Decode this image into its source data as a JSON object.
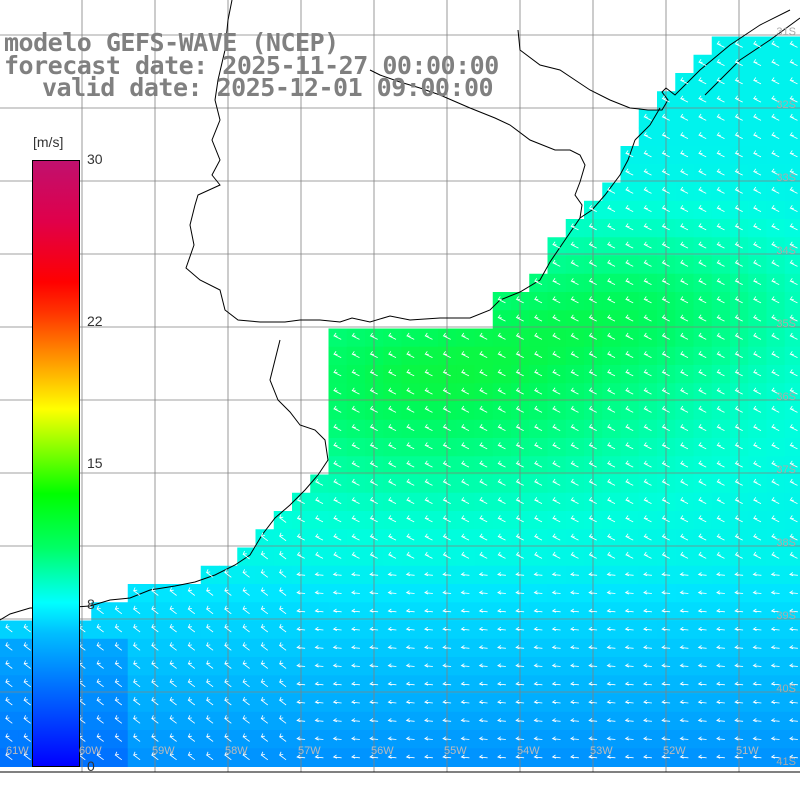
{
  "title": {
    "line1": "modelo GEFS-WAVE (NCEP)",
    "line2": "forecast date: 2025-11-27 00:00:00",
    "line3": "valid date: 2025-12-01 09:00:00"
  },
  "colorbar": {
    "units": "[m/s]",
    "min": 0,
    "max": 30,
    "ticks": [
      "30",
      "22",
      "15",
      "8",
      "0"
    ],
    "tick_values": [
      30,
      22,
      15,
      8,
      0
    ]
  },
  "lat_labels": [
    "31S",
    "32S",
    "33S",
    "34S",
    "35S",
    "36S",
    "37S",
    "38S",
    "39S",
    "40S",
    "41S"
  ],
  "lon_labels": [
    "61W",
    "60W",
    "59W",
    "58W",
    "57W",
    "56W",
    "55W",
    "54W",
    "53W",
    "52W",
    "51W"
  ],
  "colors": {
    "land": "#ffffff",
    "grid": "#808080",
    "coast": "#000000",
    "arrow": "#ffffff",
    "title": "#808080"
  }
}
